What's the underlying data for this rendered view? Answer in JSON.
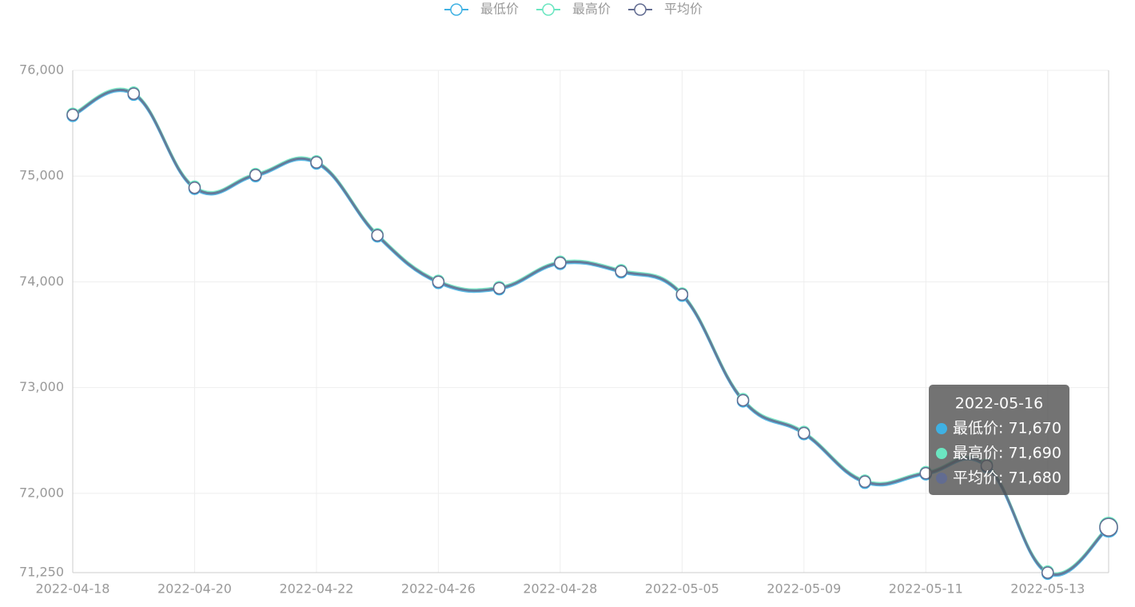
{
  "chart_data": {
    "type": "line",
    "categories": [
      "2022-04-18",
      null,
      "2022-04-20",
      null,
      "2022-04-22",
      null,
      "2022-04-26",
      null,
      "2022-04-28",
      null,
      "2022-05-05",
      null,
      "2022-05-09",
      null,
      "2022-05-11",
      null,
      "2022-05-13",
      "2022-05-16"
    ],
    "series": [
      {
        "name": "最低价",
        "color": "#3fb1e3",
        "values": [
          75570,
          75770,
          74880,
          75000,
          75120,
          74430,
          73990,
          73930,
          74170,
          74090,
          73870,
          72870,
          72560,
          72100,
          72180,
          72250,
          71240,
          71670
        ]
      },
      {
        "name": "最高价",
        "color": "#6be6c1",
        "values": [
          75590,
          75790,
          74900,
          75020,
          75140,
          74450,
          74010,
          73950,
          74190,
          74110,
          73890,
          72890,
          72580,
          72120,
          72200,
          72270,
          71260,
          71690
        ]
      },
      {
        "name": "平均价",
        "color": "#626c91",
        "values": [
          75580,
          75780,
          74890,
          75010,
          75130,
          74440,
          74000,
          73940,
          74180,
          74100,
          73880,
          72880,
          72570,
          72110,
          72190,
          72260,
          71250,
          71680
        ]
      }
    ],
    "ylim": [
      71250,
      76000
    ],
    "yticks": [
      {
        "value": 71250,
        "label": "71,250"
      },
      {
        "value": 72000,
        "label": "72,000"
      },
      {
        "value": 73000,
        "label": "73,000"
      },
      {
        "value": 74000,
        "label": "74,000"
      },
      {
        "value": 75000,
        "label": "75,000"
      },
      {
        "value": 76000,
        "label": "76,000"
      }
    ],
    "grid": true,
    "legend": "top",
    "tooltip": {
      "lines": [
        "最低价: 71,670",
        "最高价: 71,690",
        "平均价: 71,680"
      ]
    }
  }
}
